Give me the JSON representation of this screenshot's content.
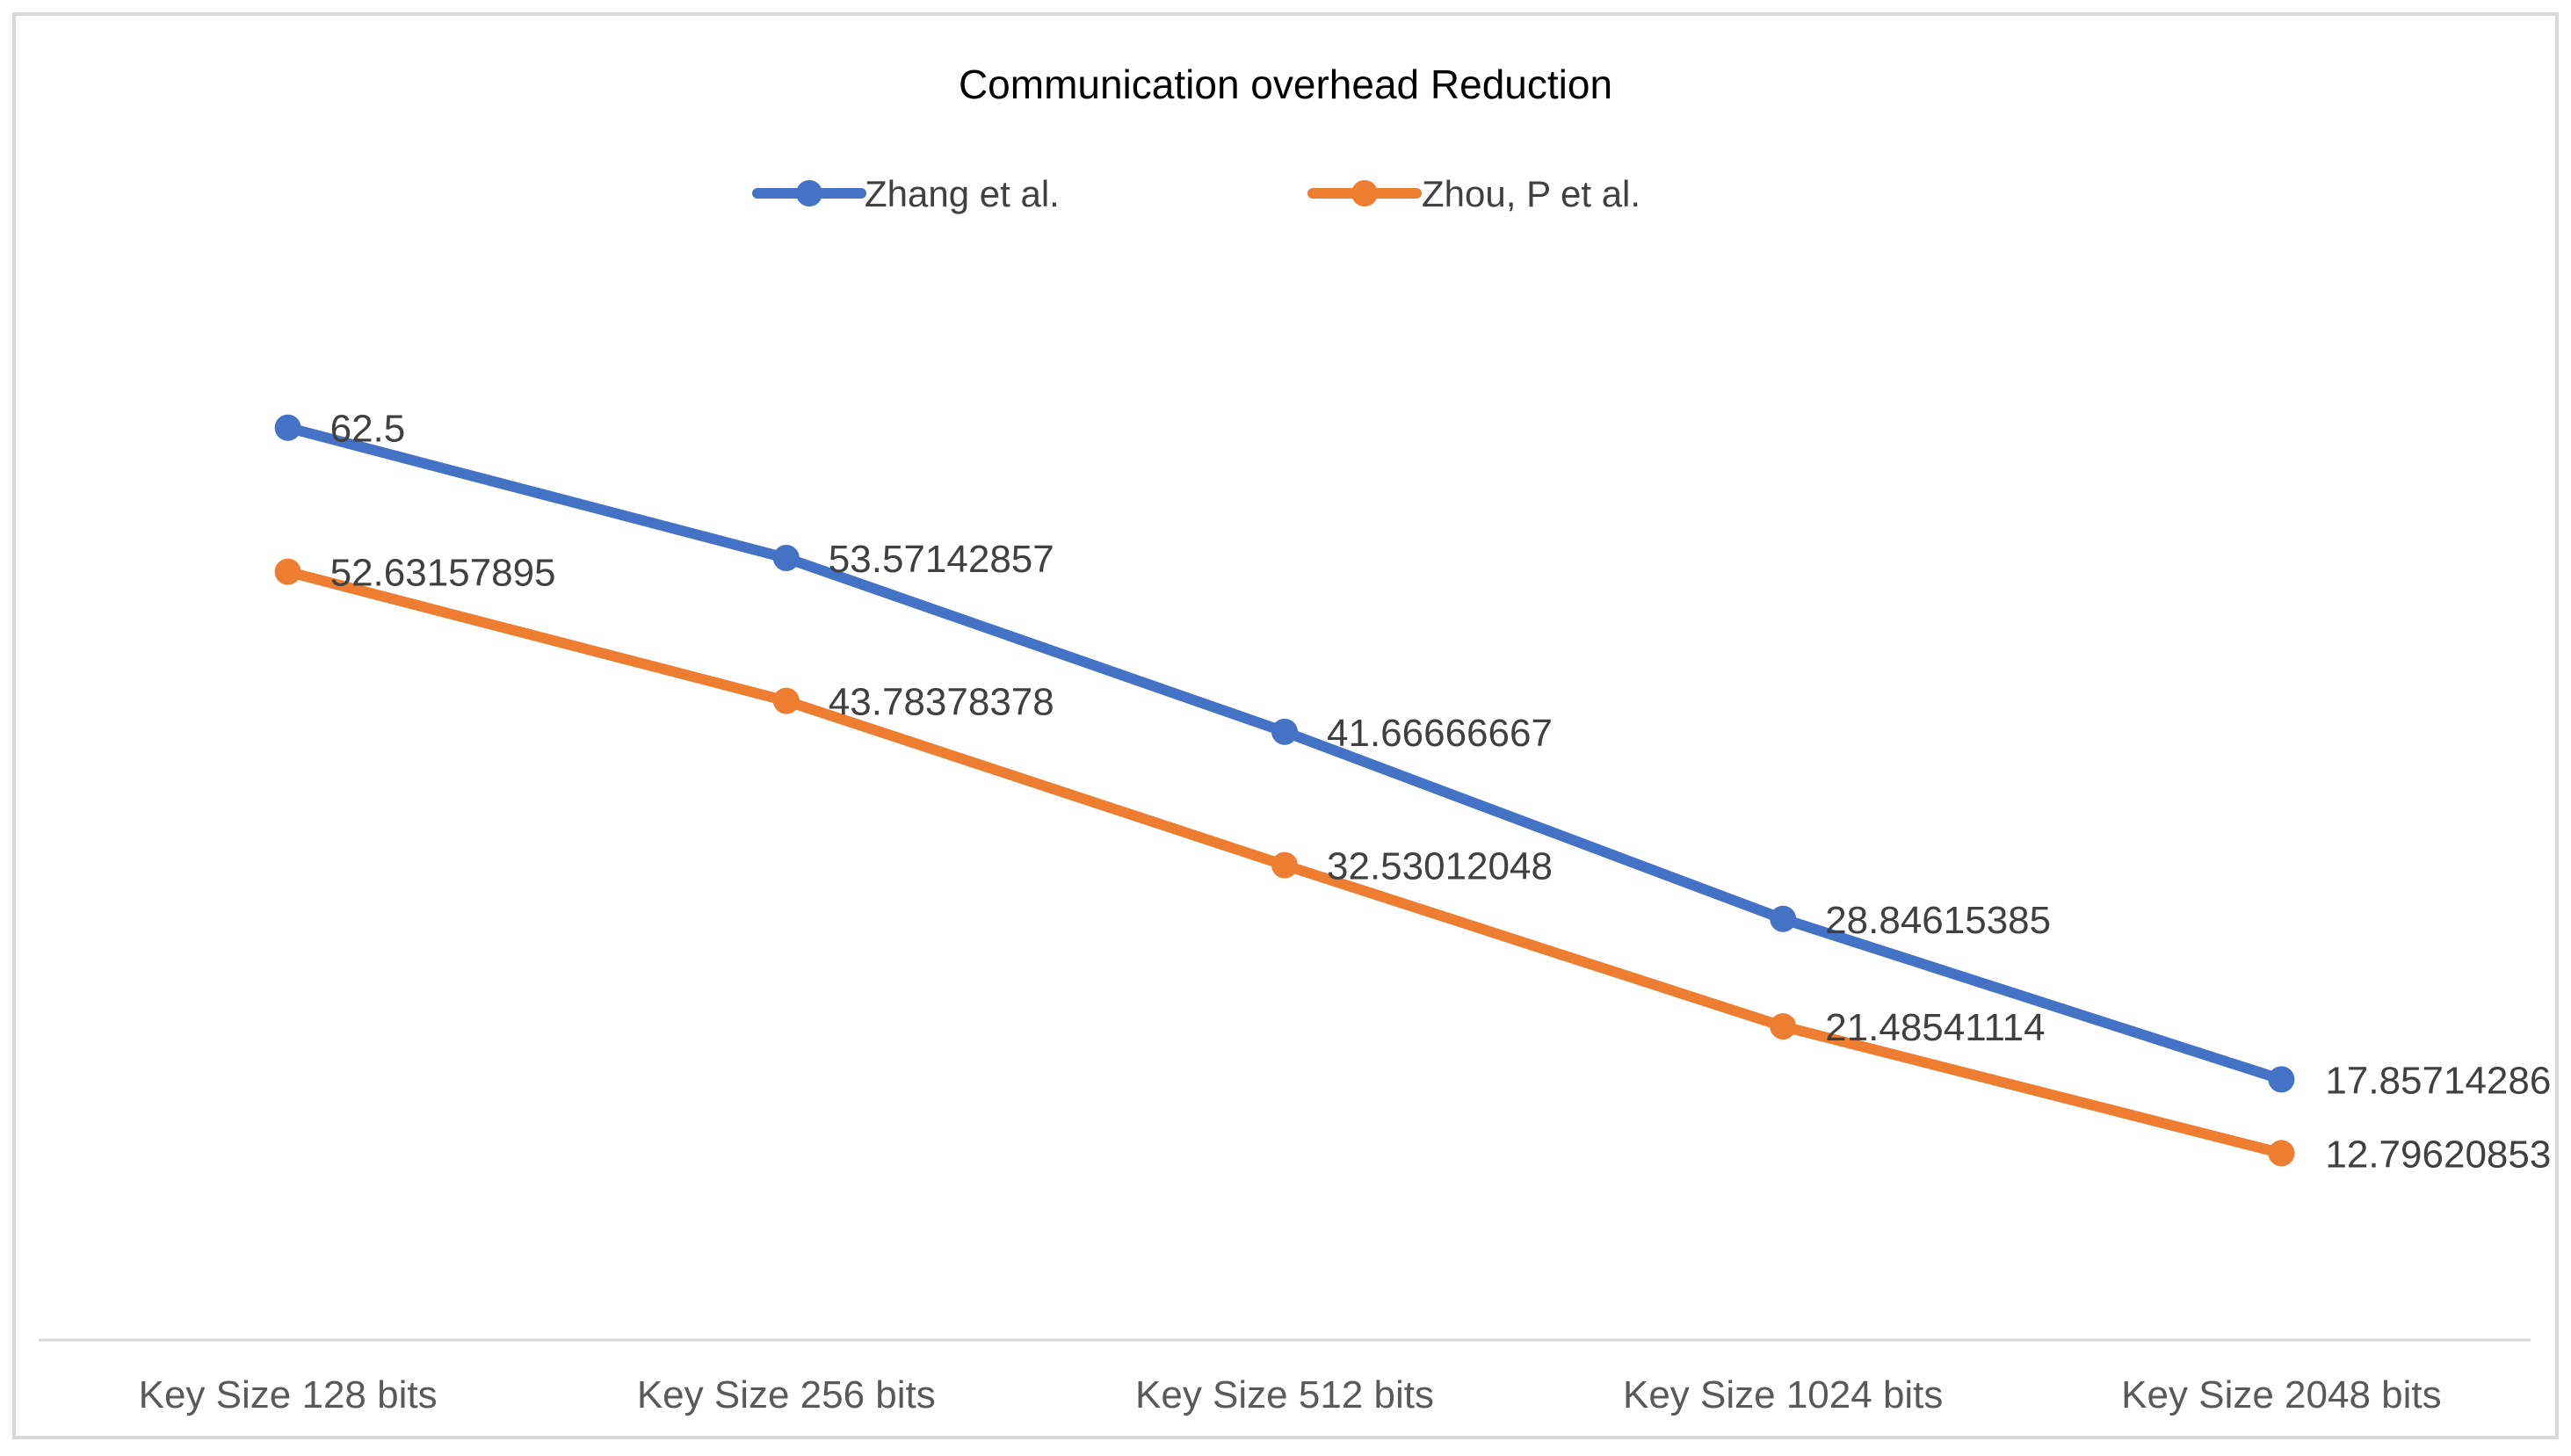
{
  "chart_data": {
    "type": "line",
    "title": "Communication overhead Reduction",
    "categories": [
      "Key Size 128 bits",
      "Key Size 256 bits",
      "Key Size 512 bits",
      "Key Size 1024 bits",
      "Key Size 2048 bits"
    ],
    "series": [
      {
        "name": "Zhang et al.",
        "color": "#4472C4",
        "values": [
          62.5,
          53.57142857,
          41.66666667,
          28.84615385,
          17.85714286
        ],
        "labels": [
          "62.5",
          "53.57142857",
          "41.66666667",
          "28.84615385",
          "17.85714286"
        ]
      },
      {
        "name": "Zhou, P et al.",
        "color": "#ED7D31",
        "values": [
          52.63157895,
          43.78378378,
          32.53012048,
          21.48541114,
          12.79620853
        ],
        "labels": [
          "52.63157895",
          "43.78378378",
          "32.53012048",
          "21.48541114",
          "12.79620853"
        ]
      }
    ],
    "xlabel": "",
    "ylabel": "",
    "ylim": [
      0,
      80
    ],
    "grid": false,
    "legend": "top-center"
  }
}
